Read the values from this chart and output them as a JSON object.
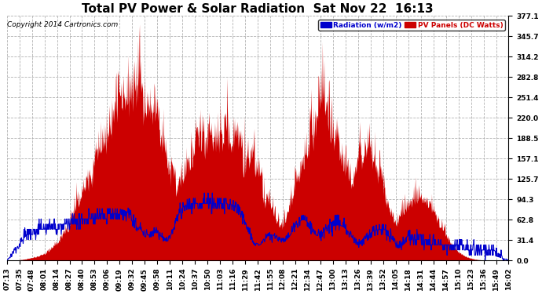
{
  "title": "Total PV Power & Solar Radiation  Sat Nov 22  16:13",
  "copyright": "Copyright 2014 Cartronics.com",
  "y_ticks": [
    0.0,
    31.4,
    62.8,
    94.3,
    125.7,
    157.1,
    188.5,
    220.0,
    251.4,
    282.8,
    314.2,
    345.7,
    377.1
  ],
  "y_max": 377.1,
  "x_labels": [
    "07:13",
    "07:35",
    "07:48",
    "08:01",
    "08:14",
    "08:27",
    "08:40",
    "08:53",
    "09:06",
    "09:19",
    "09:32",
    "09:45",
    "09:58",
    "10:11",
    "10:24",
    "10:37",
    "10:50",
    "11:03",
    "11:16",
    "11:29",
    "11:42",
    "11:55",
    "12:08",
    "12:21",
    "12:34",
    "12:47",
    "13:00",
    "13:13",
    "13:26",
    "13:39",
    "13:52",
    "14:05",
    "14:18",
    "14:31",
    "14:44",
    "14:57",
    "15:10",
    "15:23",
    "15:36",
    "15:49",
    "16:02"
  ],
  "legend_radiation_label": "Radiation (w/m2)",
  "legend_pv_label": "PV Panels (DC Watts)",
  "radiation_color": "#0000cc",
  "pv_fill_color": "#cc0000",
  "background_color": "#ffffff",
  "grid_color": "#aaaaaa",
  "title_fontsize": 11,
  "tick_fontsize": 6.5,
  "copyright_fontsize": 6.5
}
